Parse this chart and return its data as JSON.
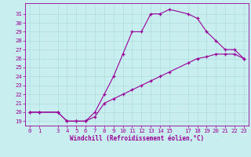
{
  "xlabel": "Windchill (Refroidissement éolien,°C)",
  "bg_color": "#c8eef0",
  "grid_color": "#b0dde0",
  "line_color": "#990099",
  "xlim": [
    -0.5,
    23.5
  ],
  "ylim": [
    18.5,
    32.2
  ],
  "xticks": [
    0,
    1,
    3,
    4,
    5,
    6,
    7,
    8,
    9,
    10,
    11,
    12,
    13,
    14,
    15,
    17,
    18,
    19,
    20,
    21,
    22,
    23
  ],
  "yticks": [
    19,
    20,
    21,
    22,
    23,
    24,
    25,
    26,
    27,
    28,
    29,
    30,
    31
  ],
  "curve1_x": [
    0,
    1,
    3,
    4,
    5,
    6,
    7,
    8,
    9,
    10,
    11,
    12,
    13,
    14,
    15,
    17,
    18,
    19,
    20,
    21,
    22,
    23
  ],
  "curve1_y": [
    20,
    20,
    20,
    19,
    19,
    19,
    20,
    22,
    24,
    26.5,
    29,
    29,
    31,
    31,
    31.5,
    31,
    30.5,
    29,
    28,
    27,
    27,
    26
  ],
  "curve2_x": [
    0,
    1,
    3,
    4,
    5,
    6,
    7,
    8,
    9,
    10,
    11,
    12,
    13,
    14,
    15,
    17,
    18,
    19,
    20,
    21,
    22,
    23
  ],
  "curve2_y": [
    20,
    20,
    20,
    19,
    19,
    19,
    19.5,
    21,
    21.5,
    22,
    22.5,
    23,
    23.5,
    24,
    24.5,
    25.5,
    26,
    26.2,
    26.5,
    26.5,
    26.5,
    26
  ],
  "xlabel_fontsize": 5.5,
  "tick_fontsize": 5.2
}
